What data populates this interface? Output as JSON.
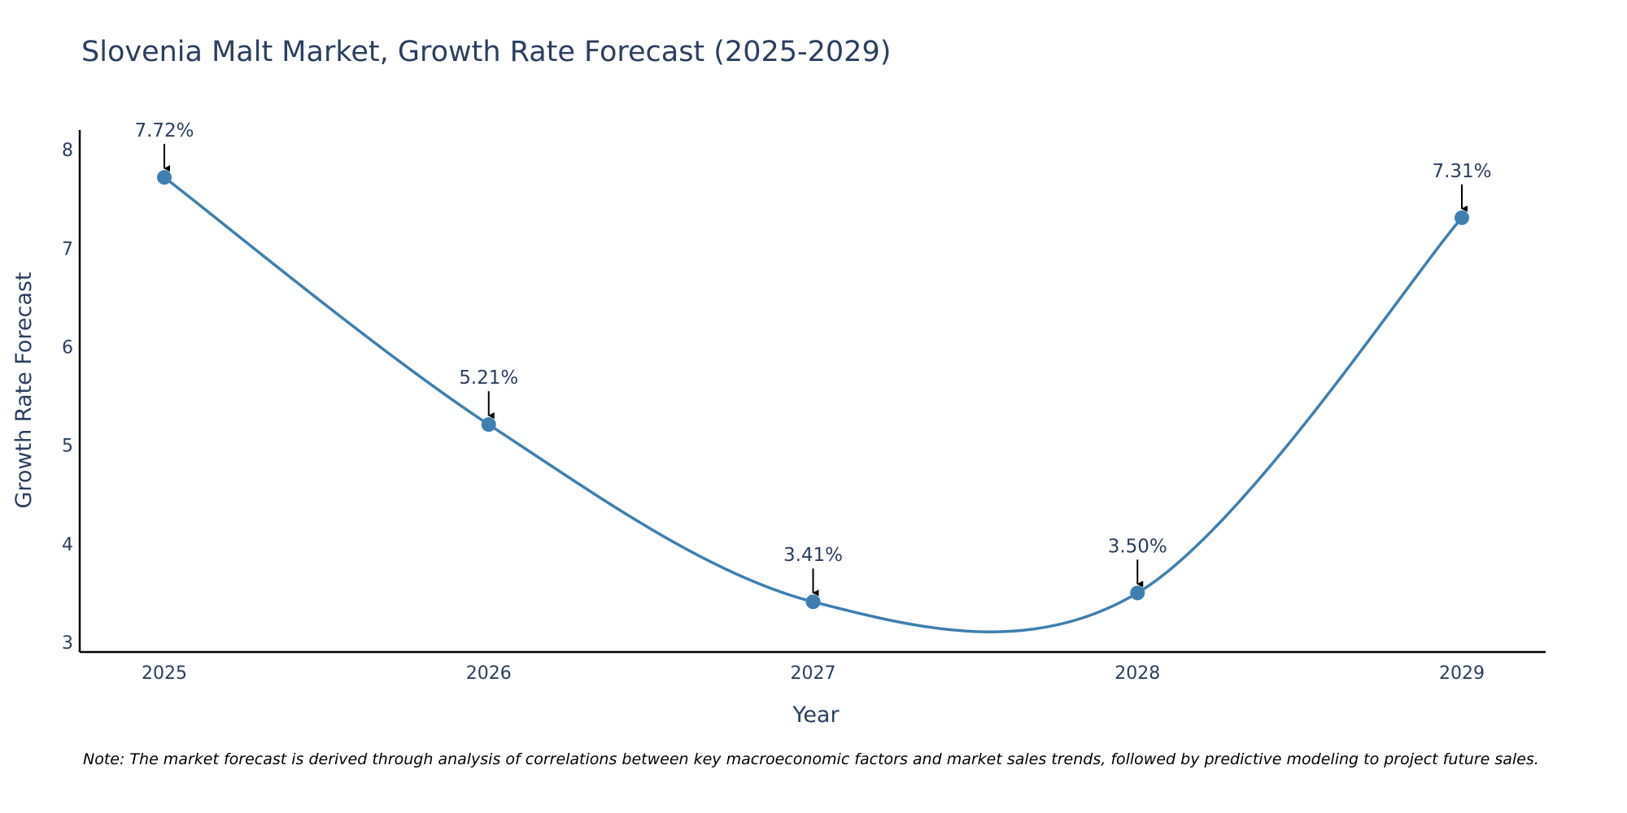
{
  "chart_data": {
    "type": "line",
    "title": "Slovenia Malt Market, Growth Rate Forecast (2025-2029)",
    "xlabel": "Year",
    "ylabel": "Growth Rate Forecast",
    "categories": [
      "2025",
      "2026",
      "2027",
      "2028",
      "2029"
    ],
    "series": [
      {
        "name": "Growth Rate Forecast",
        "values": [
          7.72,
          5.21,
          3.41,
          3.5,
          7.31
        ]
      }
    ],
    "data_labels": [
      "7.72%",
      "5.21%",
      "3.41%",
      "3.50%",
      "7.31%"
    ],
    "y_ticks": [
      3,
      4,
      5,
      6,
      7,
      8
    ],
    "ylim": [
      2.9,
      8.2
    ],
    "grid": false,
    "line_color": "#3f7fb0"
  },
  "note": "Note: The market forecast is derived through analysis of correlations between key macroeconomic factors and market sales trends, followed by predictive modeling to project future sales."
}
